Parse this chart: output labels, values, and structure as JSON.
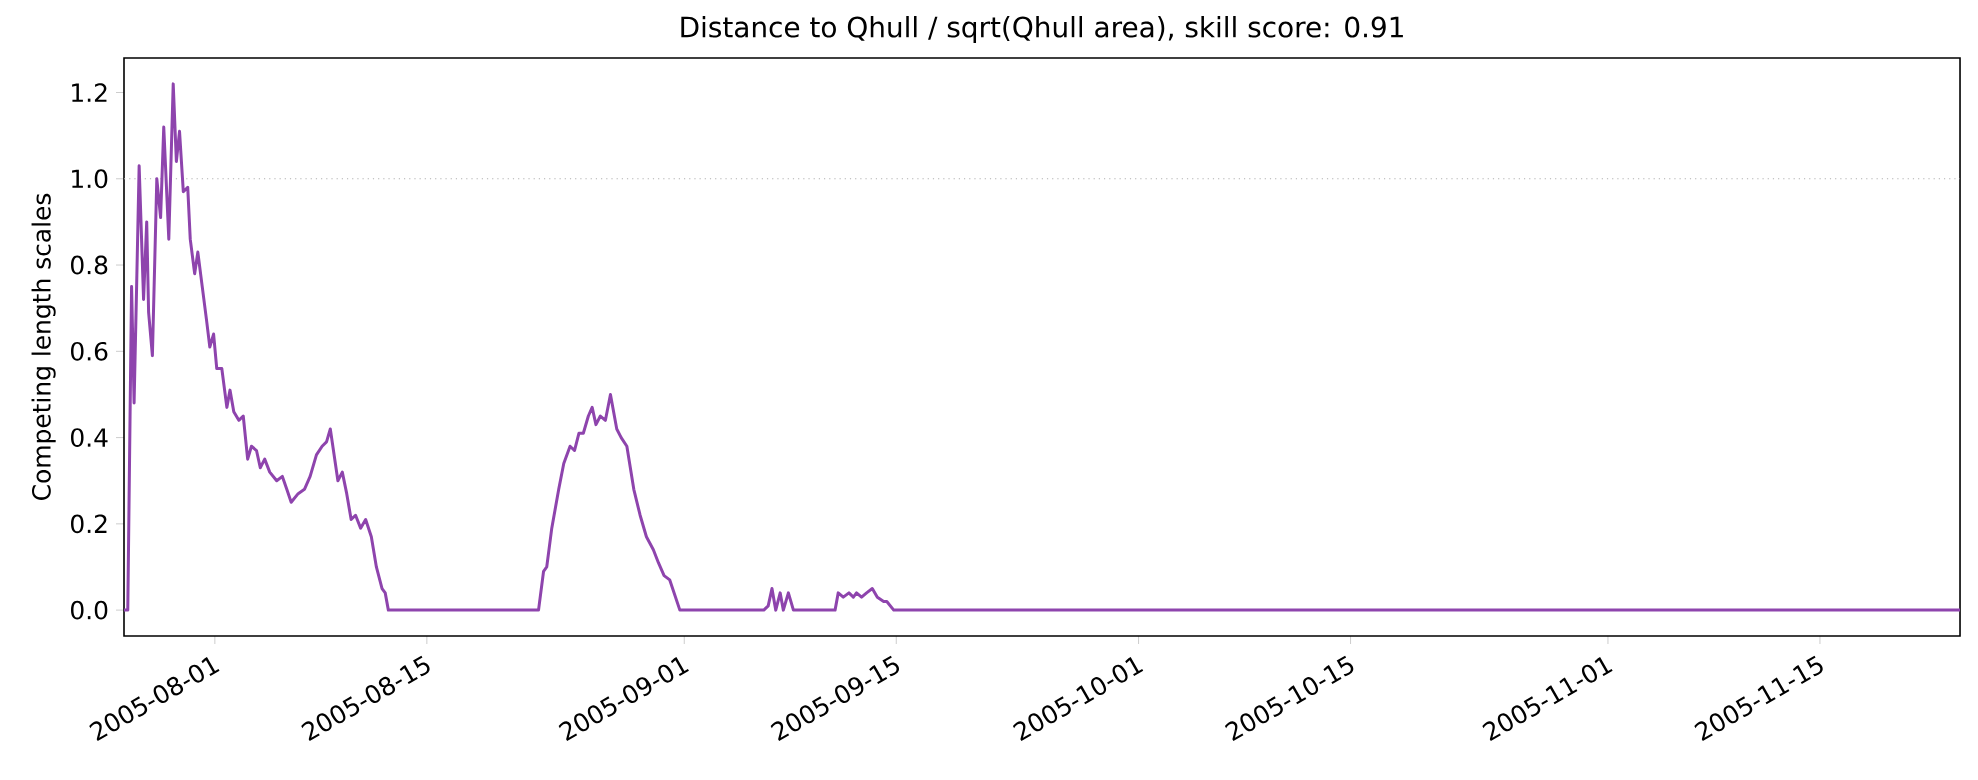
{
  "chart_data": {
    "type": "line",
    "title": "Distance to Qhull / sqrt(Qhull area), skill score: 0.91",
    "ylabel": "Competing length scales",
    "xlim": [
      "2005-07-26T00:00",
      "2005-11-24T06:00"
    ],
    "ylim": [
      -0.06,
      1.28
    ],
    "xticks": [
      "2005-08-01",
      "2005-08-15",
      "2005-09-01",
      "2005-09-15",
      "2005-10-01",
      "2005-10-15",
      "2005-11-01",
      "2005-11-15"
    ],
    "yticks": [
      {
        "value": 0,
        "label": "0.0"
      },
      0.2,
      0.4,
      0.6,
      0.8,
      {
        "value": 1,
        "label": "1.0"
      },
      1.2
    ],
    "ref_lines": [
      {
        "axis": "y",
        "value": 1,
        "color": "#b0b0b0",
        "line_style": "dotted"
      }
    ],
    "marker": "none",
    "line_style": "solid",
    "grid": false,
    "series": [
      {
        "color": "#8e44ad",
        "x": [
          "2005-07-26T00:00",
          "2005-07-26T06:00",
          "2005-07-26T12:00",
          "2005-07-26T16:00",
          "2005-07-26T20:00",
          "2005-07-27T00:00",
          "2005-07-27T07:00",
          "2005-07-27T12:00",
          "2005-07-27T15:00",
          "2005-07-27T21:00",
          "2005-07-28T04:00",
          "2005-07-28T10:00",
          "2005-07-28T15:00",
          "2005-07-28T23:00",
          "2005-07-29T06:00",
          "2005-07-29T11:00",
          "2005-07-29T16:00",
          "2005-07-29T22:00",
          "2005-07-30T05:00",
          "2005-07-30T09:00",
          "2005-07-30T16:00",
          "2005-07-30T21:00",
          "2005-07-31T04:00",
          "2005-07-31T11:00",
          "2005-07-31T16:00",
          "2005-07-31T22:00",
          "2005-08-01T03:00",
          "2005-08-01T11:00",
          "2005-08-01T19:00",
          "2005-08-02T00:00",
          "2005-08-02T06:00",
          "2005-08-02T14:00",
          "2005-08-02T21:00",
          "2005-08-03T04:00",
          "2005-08-03T10:00",
          "2005-08-03T18:00",
          "2005-08-04T00:00",
          "2005-08-04T07:00",
          "2005-08-04T15:00",
          "2005-08-05T02:00",
          "2005-08-05T11:00",
          "2005-08-05T18:00",
          "2005-08-06T01:00",
          "2005-08-06T12:00",
          "2005-08-06T22:00",
          "2005-08-07T07:00",
          "2005-08-07T17:00",
          "2005-08-08T02:00",
          "2005-08-08T09:00",
          "2005-08-08T15:00",
          "2005-08-08T21:00",
          "2005-08-09T03:00",
          "2005-08-09T10:00",
          "2005-08-09T17:00",
          "2005-08-10T00:00",
          "2005-08-10T07:00",
          "2005-08-10T15:00",
          "2005-08-10T23:00",
          "2005-08-11T08:00",
          "2005-08-11T16:00",
          "2005-08-12T01:00",
          "2005-08-12T06:00",
          "2005-08-12T11:00",
          "2005-08-22T06:00",
          "2005-08-22T09:00",
          "2005-08-22T17:00",
          "2005-08-22T22:00",
          "2005-08-23T06:00",
          "2005-08-23T17:00",
          "2005-08-24T01:00",
          "2005-08-24T11:00",
          "2005-08-24T18:00",
          "2005-08-25T01:00",
          "2005-08-25T08:00",
          "2005-08-25T16:00",
          "2005-08-25T22:00",
          "2005-08-26T04:00",
          "2005-08-26T11:00",
          "2005-08-26T19:00",
          "2005-08-27T03:00",
          "2005-08-27T13:00",
          "2005-08-27T20:00",
          "2005-08-28T05:00",
          "2005-08-28T16:00",
          "2005-08-29T02:00",
          "2005-08-29T12:00",
          "2005-08-29T23:00",
          "2005-08-30T07:00",
          "2005-08-30T16:00",
          "2005-08-31T01:00",
          "2005-08-31T17:00",
          "2005-09-06T06:00",
          "2005-09-06T13:00",
          "2005-09-06T19:00",
          "2005-09-07T01:00",
          "2005-09-07T08:00",
          "2005-09-07T13:00",
          "2005-09-07T21:00",
          "2005-09-08T05:00",
          "2005-09-10T23:00",
          "2005-09-11T04:00",
          "2005-09-11T12:00",
          "2005-09-11T21:00",
          "2005-09-12T04:00",
          "2005-09-12T09:00",
          "2005-09-12T17:00",
          "2005-09-13T01:00",
          "2005-09-13T10:00",
          "2005-09-13T18:00",
          "2005-09-14T04:00",
          "2005-09-14T09:00",
          "2005-09-14T20:00",
          "2005-11-24T06:00"
        ],
        "values": [
          0,
          0,
          0.75,
          0.48,
          0.75,
          1.03,
          0.72,
          0.9,
          0.69,
          0.59,
          1.0,
          0.91,
          1.12,
          0.86,
          1.22,
          1.04,
          1.11,
          0.97,
          0.98,
          0.86,
          0.78,
          0.83,
          0.75,
          0.67,
          0.61,
          0.64,
          0.56,
          0.56,
          0.47,
          0.51,
          0.46,
          0.44,
          0.45,
          0.35,
          0.38,
          0.37,
          0.33,
          0.35,
          0.32,
          0.3,
          0.31,
          0.28,
          0.25,
          0.27,
          0.28,
          0.31,
          0.36,
          0.38,
          0.39,
          0.42,
          0.36,
          0.3,
          0.32,
          0.27,
          0.21,
          0.22,
          0.19,
          0.21,
          0.17,
          0.1,
          0.05,
          0.04,
          0,
          0,
          0,
          0.09,
          0.1,
          0.19,
          0.28,
          0.34,
          0.38,
          0.37,
          0.41,
          0.41,
          0.45,
          0.47,
          0.43,
          0.45,
          0.44,
          0.5,
          0.42,
          0.4,
          0.38,
          0.28,
          0.22,
          0.17,
          0.14,
          0.11,
          0.08,
          0.07,
          0,
          0,
          0.01,
          0.05,
          0,
          0.04,
          0,
          0.04,
          0,
          0,
          0.04,
          0.03,
          0.04,
          0.03,
          0.04,
          0.03,
          0.04,
          0.05,
          0.03,
          0.02,
          0.02,
          0,
          0
        ]
      }
    ]
  }
}
